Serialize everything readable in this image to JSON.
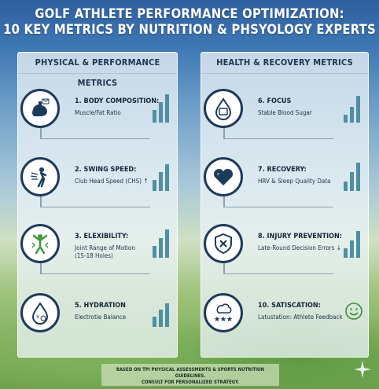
{
  "title": {
    "line1": "GOLF ATHLETE PERFORMANCE OPTIMIZATION:",
    "line2": "10 KEY METRICS BY NUTRITION & PHSYOLOGY EXPERTS"
  },
  "left_panel": {
    "heading": "PHYSICAL & PERFORMANCE METRICS",
    "metrics": [
      {
        "title": "1. BODY COMPOSITION:",
        "subtitle": "Muscle/Fat Ratio",
        "icon": "flexed-arm-icon"
      },
      {
        "title": "2. SWING SPEED:",
        "subtitle": "Club Head Speed (CHS) ↑",
        "icon": "golfer-swing-icon"
      },
      {
        "title": "3. ELEXIBILITY:",
        "subtitle": "Joint Range of Motion",
        "subtitle2": "(15-18 Holes)",
        "icon": "stretch-figure-icon"
      },
      {
        "title": "5. HYDRATION",
        "subtitle": "Electrotie Balance",
        "icon": "water-drop-icon"
      }
    ]
  },
  "right_panel": {
    "heading": "HEALTH & RECOVERY METRICS",
    "metrics": [
      {
        "title": "6. FOCUS",
        "subtitle": "Stable Blood Sugar",
        "icon": "blood-drop-monitor-icon"
      },
      {
        "title": "7. RECOVERY:",
        "subtitle": "HRV & Sleep Quality Data",
        "icon": "heart-moon-icon"
      },
      {
        "title": "8. INJURY PREVENTION:",
        "subtitle": "Late-Round Decision Errors ↓",
        "icon": "shield-x-icon"
      },
      {
        "title": "10. SATISCATION:",
        "subtitle": "Latustation: Athlete Feedback",
        "icon": "brain-stars-icon"
      }
    ]
  },
  "footer": {
    "line1": "BASED ON TPI PHYSICAL ASSESSMENTS & SPORTS NUTRITION GUIDELINES.",
    "line2": "CONSULT FOR PERSONALIZED STRATEGY."
  },
  "colors": {
    "icon_ring": "#1e3a5a",
    "bar": "#4f8fa1",
    "title_text": "#ffffff",
    "panel_heading": "#1f3550"
  }
}
